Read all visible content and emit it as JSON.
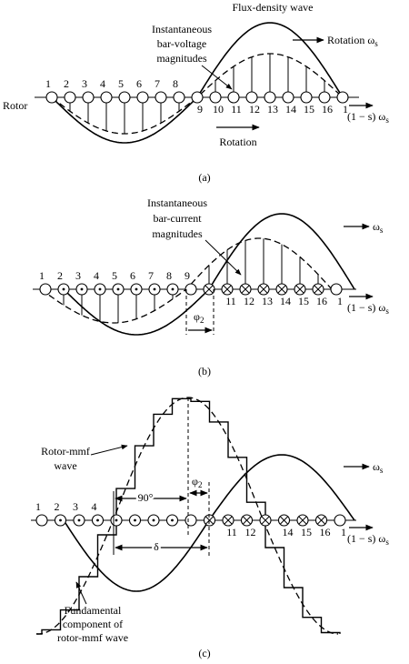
{
  "panel_a": {
    "flux_label": "Flux-density wave",
    "bar_label": [
      "Instantaneous",
      "bar-voltage",
      "magnitudes"
    ],
    "rotation_label": {
      "text": "Rotation ω",
      "sub": "s"
    },
    "rotor_label": "Rotor",
    "slip_label": {
      "text": "(1 − s) ω",
      "sub": "s"
    },
    "rotation_arrow_label": "Rotation",
    "bar_numbers_top": [
      "1",
      "2",
      "3",
      "4",
      "5",
      "6",
      "7",
      "8"
    ],
    "bar_numbers_bottom": [
      "9",
      "10",
      "11",
      "12",
      "13",
      "14",
      "15",
      "16",
      "1"
    ],
    "caption": "(a)"
  },
  "panel_b": {
    "bar_label": [
      "Instantaneous",
      "bar-current",
      "magnitudes"
    ],
    "speed_label": {
      "text": "ω",
      "sub": "s"
    },
    "slip_label": {
      "text": "(1 − s) ω",
      "sub": "s"
    },
    "phase_label": {
      "text": "φ",
      "sub": "2"
    },
    "bar_numbers_top": [
      "1",
      "2",
      "3",
      "4",
      "5",
      "6",
      "7",
      "8",
      "9"
    ],
    "bar_numbers_bottom": [
      "11",
      "12",
      "13",
      "14",
      "15",
      "16",
      "1"
    ],
    "caption": "(b)"
  },
  "panel_c": {
    "mmf_label": [
      "Rotor-mmf",
      "wave"
    ],
    "angle_label": "90°",
    "phase_label": {
      "text": "φ",
      "sub": "2"
    },
    "speed_label": {
      "text": "ω",
      "sub": "s"
    },
    "slip_label": {
      "text": "(1 − s) ω",
      "sub": "s"
    },
    "delta_label": "δ",
    "bar_numbers_top": [
      "1",
      "2",
      "3",
      "4"
    ],
    "bar_numbers_bottom": [
      "11",
      "12",
      "14",
      "15",
      "16",
      "1"
    ],
    "fundamental_label": [
      "Fundamental",
      "component of",
      "rotor-mmf wave"
    ],
    "caption": "(c)"
  }
}
